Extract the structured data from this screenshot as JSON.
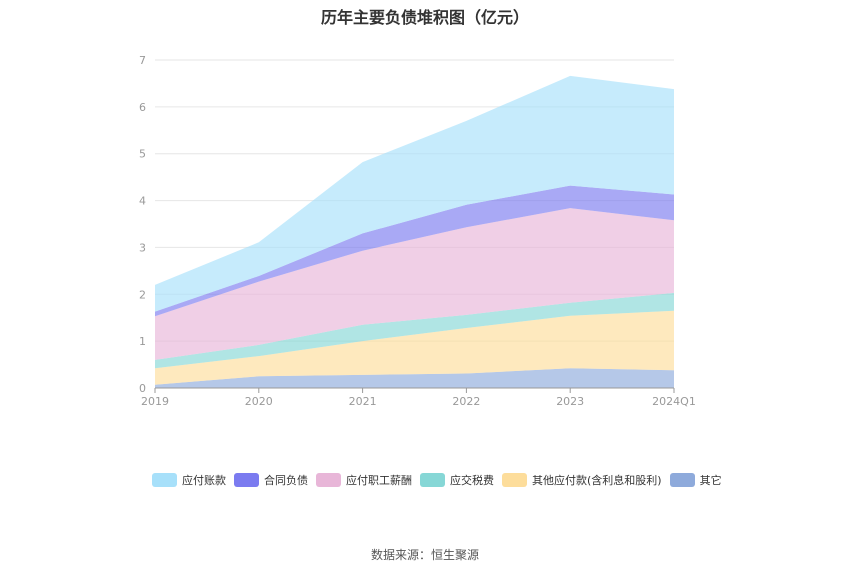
{
  "chart_data": {
    "type": "area",
    "stacked": true,
    "title": "历年主要负债堆积图（亿元）",
    "categories": [
      "2019",
      "2020",
      "2021",
      "2022",
      "2023",
      "2024Q1"
    ],
    "ylim": [
      0,
      7
    ],
    "yticks": [
      0,
      1,
      2,
      3,
      4,
      5,
      6,
      7
    ],
    "grid": true,
    "legend_position": "bottom",
    "series": [
      {
        "name": "其它",
        "color": "#8eaadb",
        "values": [
          0.07,
          0.25,
          0.28,
          0.31,
          0.42,
          0.38
        ]
      },
      {
        "name": "其他应付款(含利息和股利)",
        "color": "#fddd9b",
        "values": [
          0.35,
          0.43,
          0.72,
          0.97,
          1.12,
          1.27
        ]
      },
      {
        "name": "应交税费",
        "color": "#86d7d6",
        "values": [
          0.18,
          0.24,
          0.35,
          0.28,
          0.28,
          0.38
        ]
      },
      {
        "name": "应付职工薪酬",
        "color": "#e8b6d8",
        "values": [
          0.93,
          1.35,
          1.58,
          1.87,
          2.02,
          1.55
        ]
      },
      {
        "name": "合同负债",
        "color": "#7b7bf0",
        "values": [
          0.1,
          0.12,
          0.37,
          0.48,
          0.48,
          0.55
        ]
      },
      {
        "name": "应付账款",
        "color": "#a7e0fa",
        "values": [
          0.57,
          0.72,
          1.52,
          1.79,
          2.34,
          2.25
        ]
      }
    ],
    "legend_order": [
      "应付账款",
      "合同负债",
      "应付职工薪酬",
      "应交税费",
      "其他应付款(含利息和股利)",
      "其它"
    ]
  },
  "source_text": "数据来源：恒生聚源"
}
